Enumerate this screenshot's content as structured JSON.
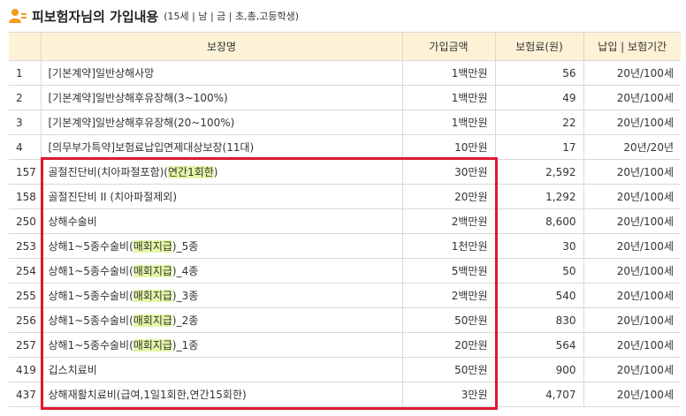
{
  "header": {
    "title": "피보험자님의 가입내용",
    "subtitle": "(15세 | 남 | 금 | 초,총,고등학생)"
  },
  "table": {
    "columns": [
      "보장명",
      "가입금액",
      "보험료(원)",
      "납입 | 보험기간"
    ],
    "rows": [
      {
        "no": "1",
        "name": [
          "[기본계약]일반상해사망"
        ],
        "amount": "1백만원",
        "premium": "56",
        "period": "20년/100세"
      },
      {
        "no": "2",
        "name": [
          "[기본계약]일반상해후유장해(3~100%)"
        ],
        "amount": "1백만원",
        "premium": "49",
        "period": "20년/100세"
      },
      {
        "no": "3",
        "name": [
          "[기본계약]일반상해후유장해(20~100%)"
        ],
        "amount": "1백만원",
        "premium": "22",
        "period": "20년/100세"
      },
      {
        "no": "4",
        "name": [
          "[의무부가특약]보험료납입면제대상보장(11대)"
        ],
        "amount": "10만원",
        "premium": "17",
        "period": "20년/20년"
      },
      {
        "no": "157",
        "name": [
          "골절진단비(치아파절포함)(",
          "연간1회한",
          ")"
        ],
        "amount": "30만원",
        "premium": "2,592",
        "period": "20년/100세"
      },
      {
        "no": "158",
        "name": [
          "골절진단비 II (치아파절제외)"
        ],
        "amount": "20만원",
        "premium": "1,292",
        "period": "20년/100세"
      },
      {
        "no": "250",
        "name": [
          "상해수술비"
        ],
        "amount": "2백만원",
        "premium": "8,600",
        "period": "20년/100세"
      },
      {
        "no": "253",
        "name": [
          "상해1~5종수술비(",
          "매회지급",
          ")_5종"
        ],
        "amount": "1천만원",
        "premium": "30",
        "period": "20년/100세"
      },
      {
        "no": "254",
        "name": [
          "상해1~5종수술비(",
          "매회지급",
          ")_4종"
        ],
        "amount": "5백만원",
        "premium": "50",
        "period": "20년/100세"
      },
      {
        "no": "255",
        "name": [
          "상해1~5종수술비(",
          "매회지급",
          ")_3종"
        ],
        "amount": "2백만원",
        "premium": "540",
        "period": "20년/100세"
      },
      {
        "no": "256",
        "name": [
          "상해1~5종수술비(",
          "매회지급",
          ")_2종"
        ],
        "amount": "50만원",
        "premium": "830",
        "period": "20년/100세"
      },
      {
        "no": "257",
        "name": [
          "상해1~5종수술비(",
          "매회지급",
          ")_1종"
        ],
        "amount": "20만원",
        "premium": "564",
        "period": "20년/100세"
      },
      {
        "no": "419",
        "name": [
          "깁스치료비"
        ],
        "amount": "50만원",
        "premium": "900",
        "period": "20년/100세"
      },
      {
        "no": "437",
        "name": [
          "상해재활치료비(급여,1일1회한,연간15회한)"
        ],
        "amount": "3만원",
        "premium": "4,707",
        "period": "20년/100세"
      }
    ]
  }
}
